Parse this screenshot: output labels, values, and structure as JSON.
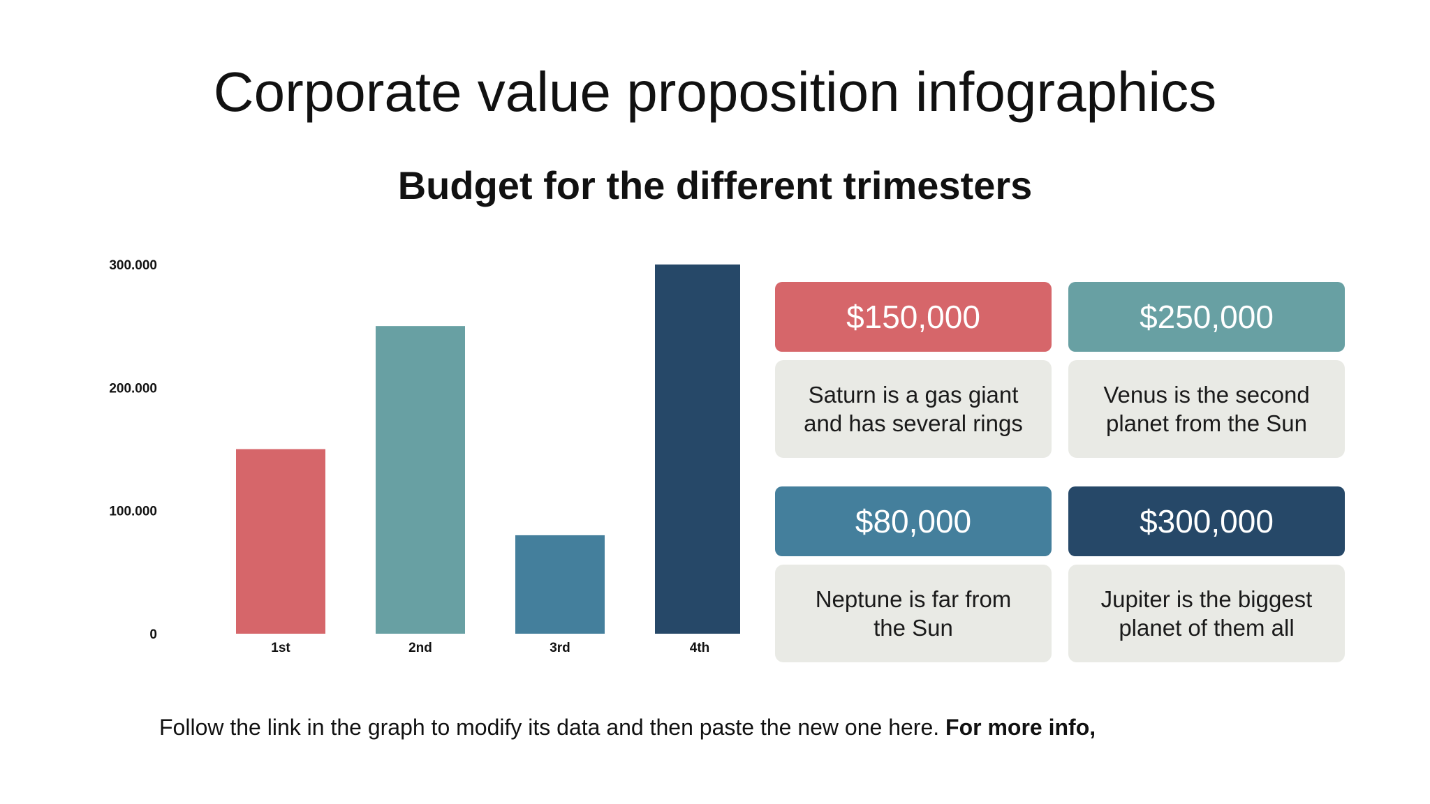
{
  "slide": {
    "title": "Corporate value proposition infographics",
    "subtitle": "Budget for the different trimesters",
    "footer_text": "Follow the link in the graph to modify its data and then paste the new one here. ",
    "footer_bold": "For more info,"
  },
  "chart_data": {
    "type": "bar",
    "categories": [
      "1st",
      "2nd",
      "3rd",
      "4th"
    ],
    "values": [
      150000,
      250000,
      80000,
      300000
    ],
    "colors": [
      "#d6666a",
      "#68a0a3",
      "#447f9c",
      "#264868"
    ],
    "ylim": [
      0,
      300000
    ],
    "yticks": [
      0,
      100000,
      200000,
      300000
    ],
    "ytick_labels": [
      "0",
      "100.000",
      "200.000",
      "300.000"
    ],
    "grid": false,
    "legend": "none"
  },
  "cards": [
    {
      "value": "$150,000",
      "text": "Saturn is a gas giant and has several rings",
      "color": "#d6666a"
    },
    {
      "value": "$250,000",
      "text": "Venus is the second planet from the Sun",
      "color": "#68a0a3"
    },
    {
      "value": "$80,000",
      "text": "Neptune is far from the Sun",
      "color": "#447f9c"
    },
    {
      "value": "$300,000",
      "text": "Jupiter is the biggest planet of them all",
      "color": "#264868"
    }
  ]
}
